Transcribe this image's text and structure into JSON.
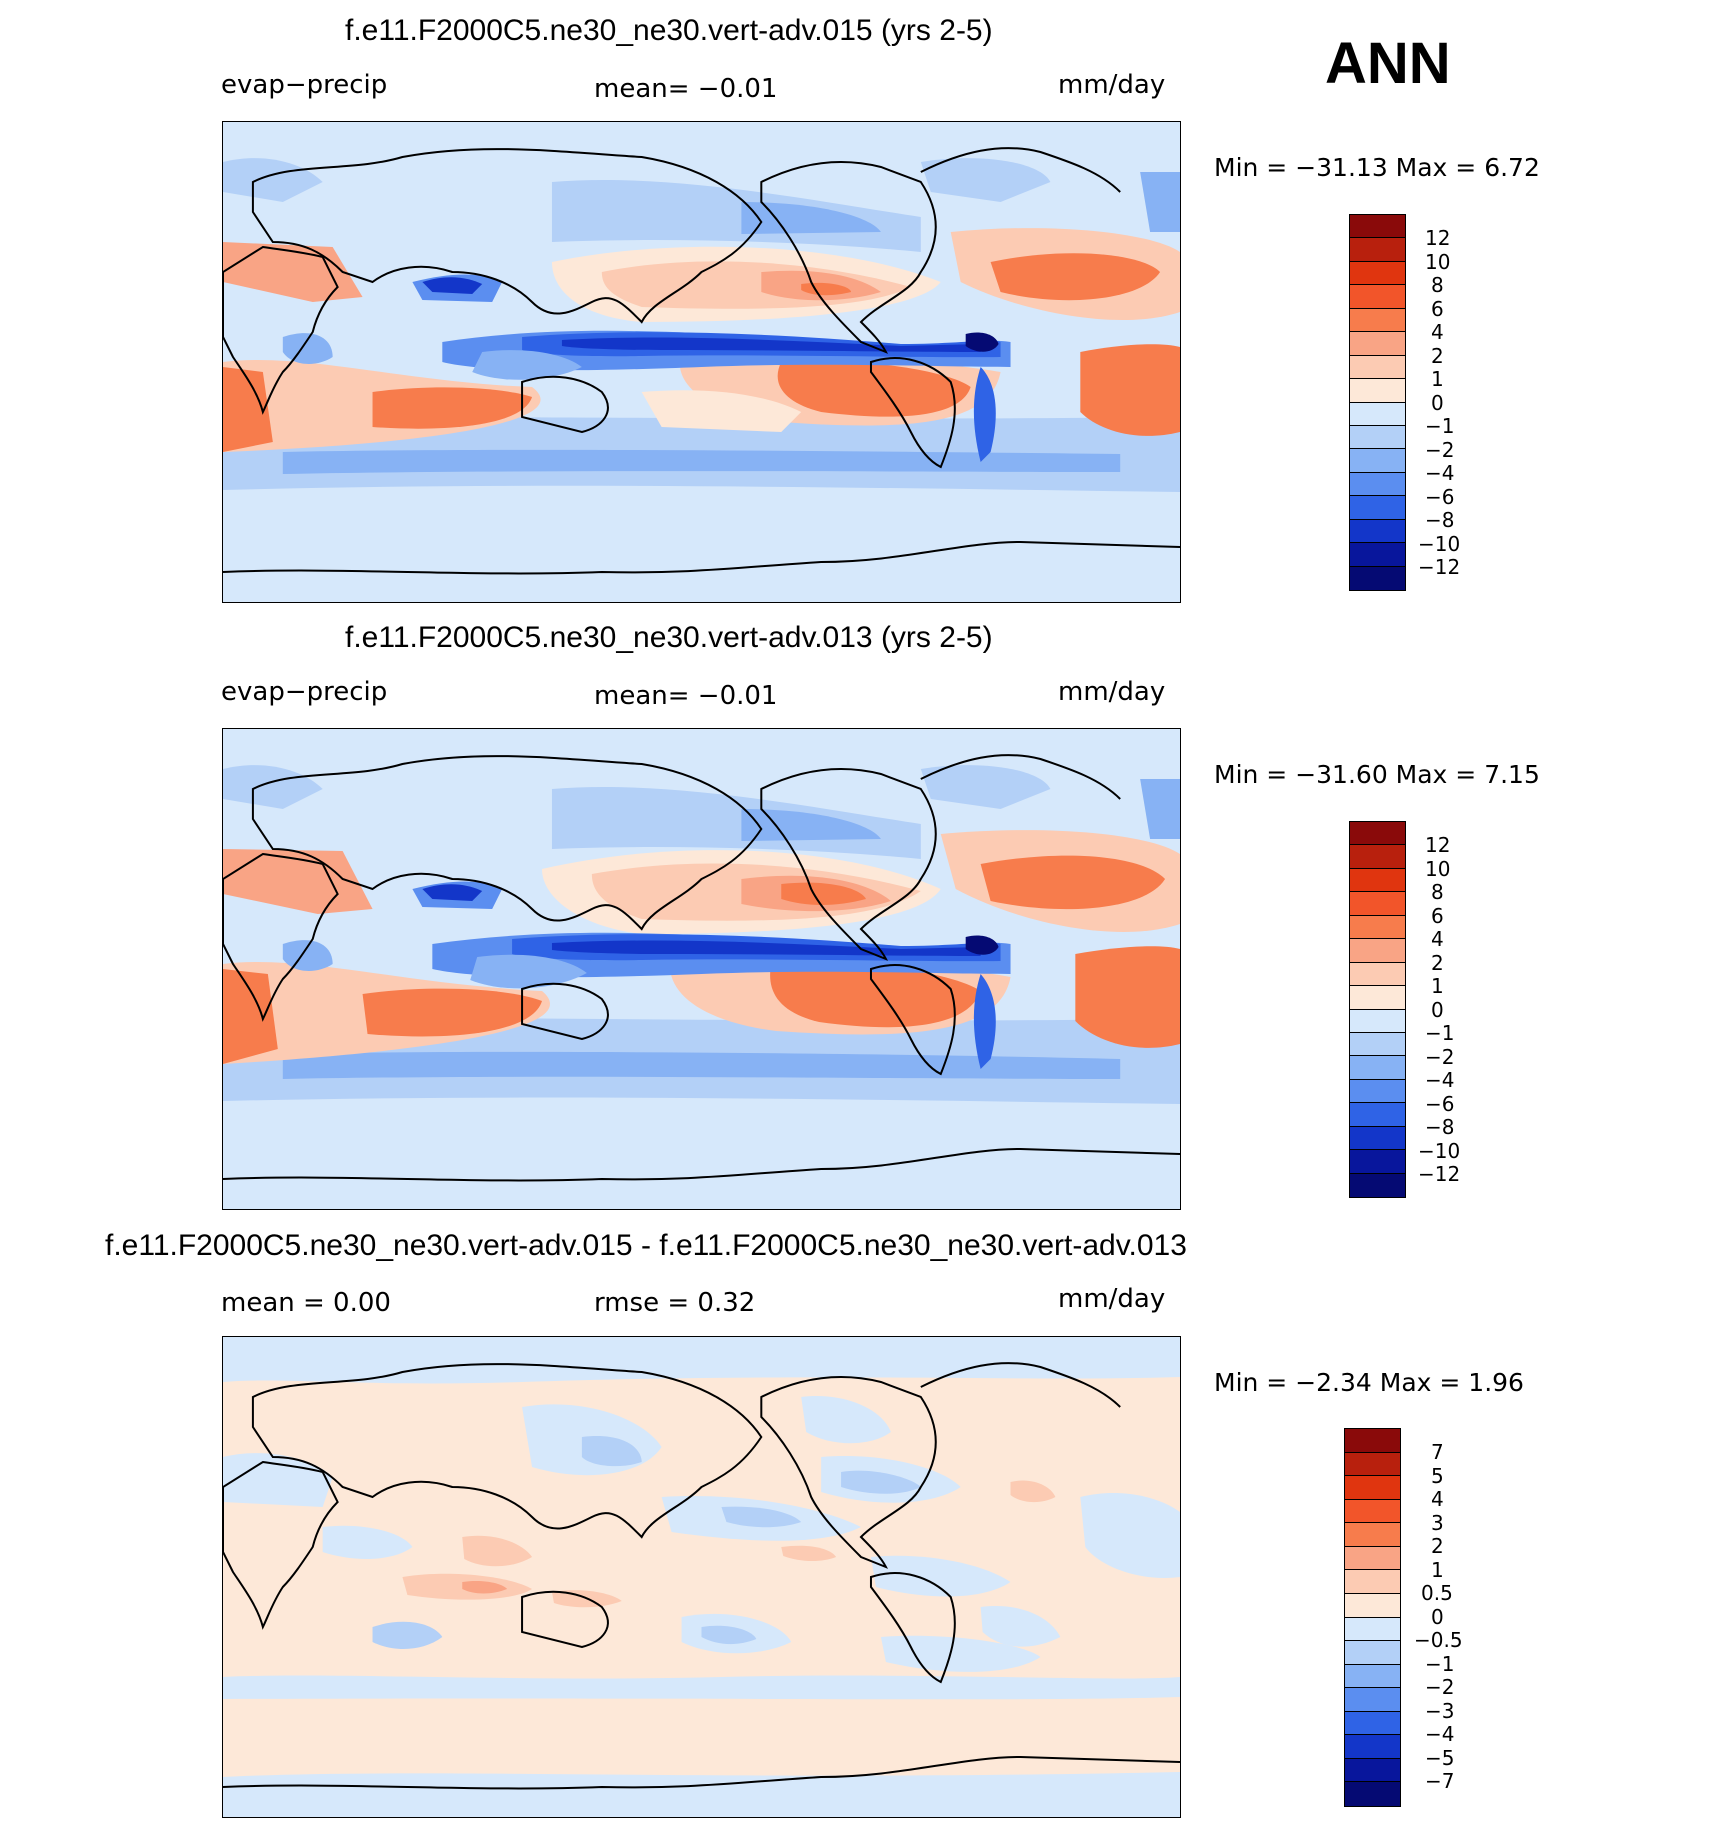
{
  "season": "ANN",
  "panels": [
    {
      "title": "f.e11.F2000C5.ne30_ne30.vert-adv.015 (yrs 2-5)",
      "variable": "evap−precip",
      "stat1": "mean=   −0.01",
      "units": "mm/day",
      "minmax": "Min  =  −31.13  Max  =     6.72",
      "colorbar": [
        "12",
        "10",
        "8",
        "6",
        "4",
        "2",
        "1",
        "0",
        "−1",
        "−2",
        "−4",
        "−6",
        "−8",
        "−10",
        "−12"
      ]
    },
    {
      "title": "f.e11.F2000C5.ne30_ne30.vert-adv.013 (yrs 2-5)",
      "variable": "evap−precip",
      "stat1": "mean=   −0.01",
      "units": "mm/day",
      "minmax": "Min  =  −31.60  Max  =     7.15",
      "colorbar": [
        "12",
        "10",
        "8",
        "6",
        "4",
        "2",
        "1",
        "0",
        "−1",
        "−2",
        "−4",
        "−6",
        "−8",
        "−10",
        "−12"
      ]
    },
    {
      "title": "f.e11.F2000C5.ne30_ne30.vert-adv.015 - f.e11.F2000C5.ne30_ne30.vert-adv.013",
      "variable": "mean  =      0.00",
      "stat1": "rmse  =      0.32",
      "units": "mm/day",
      "minmax": "Min  =     −2.34  Max  =     1.96",
      "colorbar": [
        "7",
        "5",
        "4",
        "3",
        "2",
        "1",
        "0.5",
        "0",
        "−0.5",
        "−1",
        "−2",
        "−3",
        "−4",
        "−5",
        "−7"
      ]
    }
  ],
  "colors": {
    "palette": [
      "#8a0a0a",
      "#b8200d",
      "#e0350f",
      "#f2552a",
      "#f77c4c",
      "#f9a485",
      "#fccbb3",
      "#fde8d8",
      "#d6e8fb",
      "#b3d0f7",
      "#87b2f4",
      "#5b8ef0",
      "#2f63e6",
      "#1336c9",
      "#08169c",
      "#050a73"
    ],
    "land_outline": "#000000",
    "ocean_background": "#d6e8fb"
  }
}
